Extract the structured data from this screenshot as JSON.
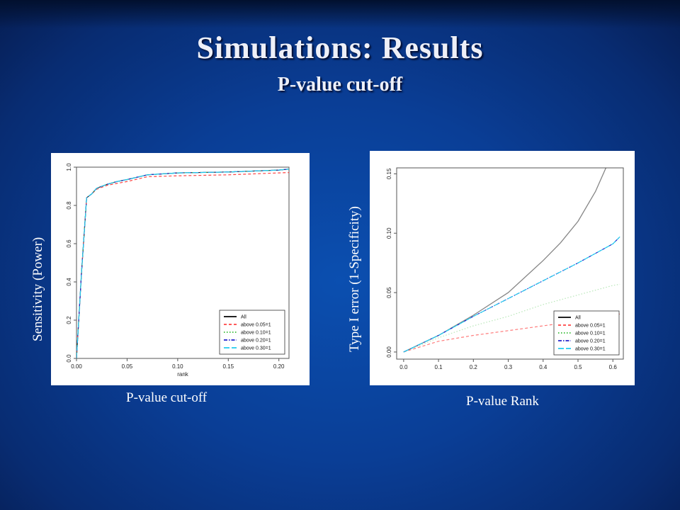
{
  "slide": {
    "title": "Simulations: Results",
    "subtitle": "P-value cut-off"
  },
  "captions": {
    "left_x": "P-value cut-off",
    "left_y": "Sensitivity (Power)",
    "right_x": "P-value Rank",
    "right_y": "Type I error (1-Specificity)"
  },
  "colors": {
    "All": "#222222",
    "above 0.05=1": "#ff4444",
    "above 0.10=1": "#33bb33",
    "above 0.20=1": "#2222cc",
    "above 0.30=1": "#22ccee"
  },
  "chart_data": [
    {
      "type": "line",
      "xlabel": "rank",
      "ylabel": "",
      "xlim": [
        0,
        0.21
      ],
      "ylim": [
        0,
        1.0
      ],
      "xticks": [
        "0.00",
        "0.05",
        "0.10",
        "0.15",
        "0.20"
      ],
      "yticks": [
        "0.0",
        "0.2",
        "0.4",
        "0.6",
        "0.8",
        "1.0"
      ],
      "legend_position": "bottom-right",
      "legend": [
        "All",
        "above 0.05=1",
        "above 0.10=1",
        "above 0.20=1",
        "above 0.30=1"
      ],
      "series": [
        {
          "name": "All",
          "x": [
            0.0,
            0.005,
            0.01,
            0.015,
            0.02,
            0.03,
            0.04,
            0.05,
            0.07,
            0.1,
            0.15,
            0.2,
            0.21
          ],
          "y": [
            0.0,
            0.45,
            0.84,
            0.86,
            0.89,
            0.91,
            0.925,
            0.935,
            0.96,
            0.97,
            0.975,
            0.985,
            0.99
          ]
        },
        {
          "name": "above 0.05=1",
          "x": [
            0.0,
            0.005,
            0.01,
            0.015,
            0.02,
            0.03,
            0.04,
            0.05,
            0.07,
            0.1,
            0.15,
            0.2,
            0.21
          ],
          "y": [
            0.0,
            0.45,
            0.84,
            0.86,
            0.885,
            0.905,
            0.915,
            0.925,
            0.95,
            0.955,
            0.96,
            0.97,
            0.972
          ]
        },
        {
          "name": "above 0.10=1",
          "x": [
            0.0,
            0.005,
            0.01,
            0.015,
            0.02,
            0.03,
            0.04,
            0.05,
            0.07,
            0.1,
            0.15,
            0.2,
            0.21
          ],
          "y": [
            0.0,
            0.45,
            0.84,
            0.86,
            0.89,
            0.91,
            0.925,
            0.935,
            0.96,
            0.97,
            0.975,
            0.985,
            0.99
          ]
        },
        {
          "name": "above 0.20=1",
          "x": [
            0.0,
            0.005,
            0.01,
            0.015,
            0.02,
            0.03,
            0.04,
            0.05,
            0.07,
            0.1,
            0.15,
            0.2,
            0.21
          ],
          "y": [
            0.0,
            0.45,
            0.84,
            0.86,
            0.89,
            0.91,
            0.925,
            0.935,
            0.96,
            0.97,
            0.975,
            0.985,
            0.99
          ]
        },
        {
          "name": "above 0.30=1",
          "x": [
            0.0,
            0.005,
            0.01,
            0.015,
            0.02,
            0.03,
            0.04,
            0.05,
            0.07,
            0.1,
            0.15,
            0.2,
            0.21
          ],
          "y": [
            0.0,
            0.45,
            0.84,
            0.86,
            0.89,
            0.91,
            0.925,
            0.935,
            0.96,
            0.97,
            0.975,
            0.985,
            0.99
          ]
        }
      ]
    },
    {
      "type": "line",
      "xlabel": "",
      "ylabel": "",
      "xlim": [
        -0.02,
        0.63
      ],
      "ylim": [
        -0.006,
        0.155
      ],
      "xticks": [
        "0.0",
        "0.1",
        "0.2",
        "0.3",
        "0.4",
        "0.5",
        "0.6"
      ],
      "yticks": [
        "0.00",
        "0.05",
        "0.10",
        "0.15"
      ],
      "legend_position": "bottom-right",
      "legend": [
        "All",
        "above 0.05=1",
        "above 0.10=1",
        "above 0.20=1",
        "above 0.30=1"
      ],
      "series": [
        {
          "name": "All",
          "x": [
            0.0,
            0.1,
            0.2,
            0.3,
            0.4,
            0.45,
            0.5,
            0.55,
            0.58
          ],
          "y": [
            0.0,
            0.014,
            0.031,
            0.05,
            0.077,
            0.092,
            0.11,
            0.135,
            0.155
          ]
        },
        {
          "name": "above 0.05=1",
          "x": [
            0.0,
            0.1,
            0.2,
            0.3,
            0.4,
            0.5,
            0.6,
            0.62
          ],
          "y": [
            0.0,
            0.009,
            0.014,
            0.018,
            0.022,
            0.026,
            0.031,
            0.032
          ]
        },
        {
          "name": "above 0.10=1",
          "x": [
            0.0,
            0.1,
            0.2,
            0.3,
            0.4,
            0.5,
            0.6,
            0.62
          ],
          "y": [
            0.0,
            0.012,
            0.022,
            0.03,
            0.04,
            0.048,
            0.056,
            0.057
          ]
        },
        {
          "name": "above 0.20=1",
          "x": [
            0.0,
            0.1,
            0.2,
            0.3,
            0.4,
            0.5,
            0.6,
            0.62
          ],
          "y": [
            0.0,
            0.014,
            0.03,
            0.045,
            0.06,
            0.075,
            0.091,
            0.097
          ]
        },
        {
          "name": "above 0.30=1",
          "x": [
            0.0,
            0.1,
            0.2,
            0.3,
            0.4,
            0.5,
            0.6,
            0.62
          ],
          "y": [
            0.0,
            0.014,
            0.03,
            0.045,
            0.06,
            0.075,
            0.091,
            0.097
          ]
        }
      ]
    }
  ]
}
